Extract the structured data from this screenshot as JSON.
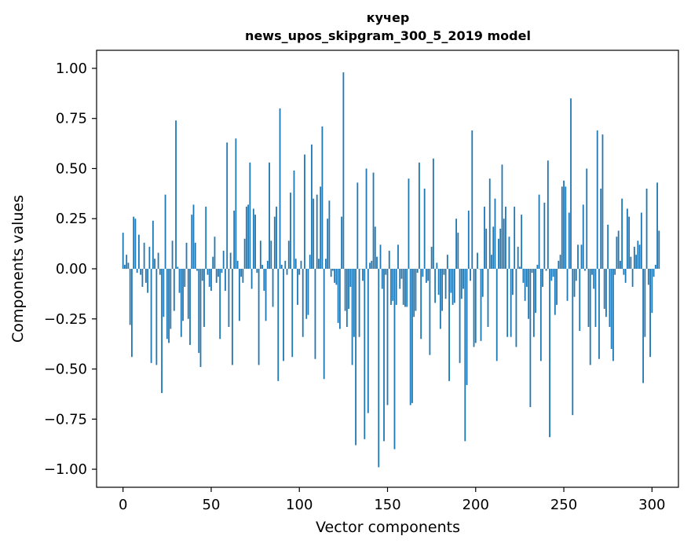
{
  "chart_data": {
    "type": "bar",
    "title": "кучер",
    "subtitle": "news_upos_skipgram_300_5_2019 model",
    "xlabel": "Vector components",
    "ylabel": "Components values",
    "xlim": [
      -15,
      315
    ],
    "ylim": [
      -1.09,
      1.09
    ],
    "xticks": [
      0,
      50,
      100,
      150,
      200,
      250,
      300
    ],
    "yticks": [
      -1.0,
      -0.75,
      -0.5,
      -0.25,
      0.0,
      0.25,
      0.5,
      0.75,
      1.0
    ],
    "ytick_labels": [
      "−1.00",
      "−0.75",
      "−0.50",
      "−0.25",
      "0.00",
      "0.25",
      "0.50",
      "0.75",
      "1.00"
    ],
    "bar_color": "#1f77b4",
    "values": [
      0.18,
      0.02,
      0.07,
      0.03,
      -0.28,
      -0.44,
      0.26,
      0.25,
      -0.02,
      0.17,
      -0.03,
      -0.09,
      0.13,
      -0.07,
      -0.12,
      0.11,
      -0.47,
      0.24,
      0.05,
      -0.48,
      0.08,
      -0.03,
      -0.62,
      -0.24,
      0.37,
      -0.35,
      -0.37,
      -0.3,
      0.14,
      -0.21,
      0.74,
      0.01,
      -0.12,
      -0.34,
      -0.26,
      -0.09,
      0.13,
      -0.25,
      -0.38,
      0.27,
      0.32,
      0.13,
      -0.01,
      -0.42,
      -0.49,
      -0.06,
      -0.29,
      0.31,
      -0.03,
      -0.09,
      -0.11,
      0.06,
      0.16,
      -0.07,
      -0.04,
      -0.35,
      -0.02,
      0.09,
      -0.11,
      0.63,
      -0.29,
      0.08,
      -0.48,
      0.29,
      0.65,
      0.04,
      -0.26,
      -0.04,
      -0.07,
      0.15,
      0.31,
      0.32,
      0.53,
      -0.1,
      0.3,
      0.27,
      -0.02,
      -0.48,
      0.14,
      0.02,
      -0.11,
      -0.26,
      0.04,
      0.53,
      0.14,
      -0.19,
      0.26,
      0.31,
      -0.56,
      0.8,
      0.02,
      -0.46,
      0.04,
      -0.03,
      0.14,
      0.38,
      -0.44,
      0.49,
      0.05,
      -0.18,
      -0.03,
      0.04,
      -0.34,
      0.57,
      -0.25,
      -0.23,
      0.07,
      0.62,
      0.35,
      -0.45,
      0.37,
      0.05,
      0.41,
      0.71,
      -0.55,
      0.05,
      0.25,
      0.34,
      -0.04,
      -0.01,
      -0.07,
      -0.08,
      -0.27,
      -0.3,
      0.26,
      0.98,
      -0.21,
      -0.29,
      -0.2,
      -0.09,
      -0.48,
      -0.34,
      -0.88,
      0.43,
      -0.34,
      0.0,
      -0.06,
      -0.85,
      0.5,
      -0.72,
      0.03,
      0.04,
      0.48,
      0.21,
      0.06,
      -0.99,
      0.12,
      -0.1,
      -0.86,
      -0.03,
      -0.68,
      0.09,
      -0.18,
      -0.16,
      -0.9,
      -0.18,
      0.12,
      -0.1,
      -0.05,
      -0.18,
      -0.19,
      -0.19,
      0.45,
      -0.68,
      -0.67,
      -0.24,
      -0.21,
      -0.02,
      0.53,
      -0.35,
      -0.04,
      0.4,
      -0.07,
      -0.06,
      -0.43,
      0.11,
      0.55,
      -0.17,
      0.03,
      -0.13,
      -0.3,
      -0.21,
      -0.03,
      -0.15,
      0.07,
      -0.56,
      -0.12,
      -0.18,
      -0.17,
      0.25,
      0.18,
      -0.47,
      -0.15,
      -0.1,
      -0.86,
      -0.58,
      0.29,
      -0.06,
      0.69,
      -0.39,
      -0.37,
      0.08,
      0.0,
      -0.36,
      -0.14,
      0.31,
      0.2,
      -0.29,
      0.45,
      0.07,
      0.21,
      0.35,
      -0.46,
      0.15,
      0.2,
      0.52,
      0.25,
      0.31,
      -0.34,
      0.16,
      -0.34,
      -0.13,
      0.31,
      -0.39,
      0.11,
      0.01,
      0.27,
      -0.07,
      -0.16,
      -0.09,
      -0.25,
      -0.69,
      -0.02,
      -0.34,
      -0.22,
      0.02,
      0.37,
      -0.46,
      -0.09,
      0.33,
      -0.01,
      0.54,
      -0.84,
      -0.06,
      -0.04,
      -0.23,
      -0.18,
      0.04,
      0.07,
      0.41,
      0.44,
      0.41,
      -0.16,
      0.28,
      0.85,
      -0.73,
      -0.14,
      -0.06,
      0.12,
      -0.31,
      0.12,
      0.32,
      -0.01,
      0.5,
      -0.29,
      -0.48,
      -0.03,
      -0.1,
      -0.29,
      0.69,
      -0.45,
      0.4,
      0.67,
      -0.2,
      -0.24,
      0.22,
      -0.29,
      -0.4,
      -0.46,
      -0.03,
      0.16,
      0.19,
      0.04,
      0.35,
      -0.03,
      -0.07,
      0.3,
      0.26,
      0.06,
      -0.09,
      0.11,
      0.07,
      0.14,
      0.12,
      0.28,
      -0.57,
      -0.34,
      0.4,
      -0.08,
      -0.44,
      -0.22,
      -0.04,
      0.02,
      0.43,
      0.19
    ]
  }
}
